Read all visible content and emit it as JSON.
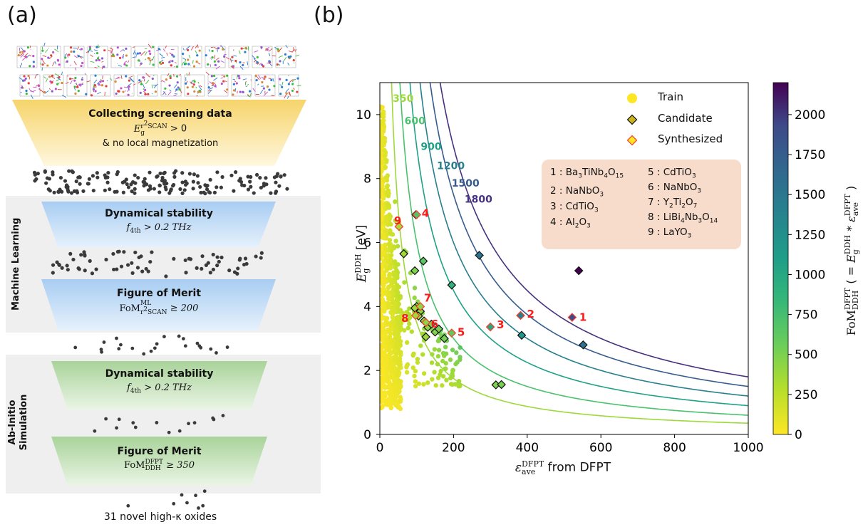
{
  "panel_a": {
    "label": "(a)",
    "stage1": {
      "title": "Collecting screening data",
      "cond_tail": "> 0",
      "cond2": "& no local magnetization"
    },
    "ml_label": "Machine Learning",
    "stage2": {
      "title": "Dynamical stability",
      "cond_tail": "> 0.2 THz"
    },
    "stage3": {
      "title": "Figure of Merit",
      "cond_tail": "≥ 200"
    },
    "ai_label_1": "Ab-Initio",
    "ai_label_2": "Simulation",
    "stage4": {
      "title": "Dynamical stability",
      "cond_tail": "> 0.2 THz"
    },
    "stage5": {
      "title": "Figure of Merit",
      "cond_tail": "≥ 350"
    },
    "result": "31 novel high-κ oxides"
  },
  "panel_b": {
    "label": "(b)",
    "legend": {
      "train": "Train",
      "candidate": "Candidate",
      "synthesized": "Synthesized"
    },
    "materials": [
      [
        "1 : Ba",
        "3",
        "TiNb",
        "4",
        "O",
        "15"
      ],
      [
        "2 : NaNbO",
        "3"
      ],
      [
        "3 : CdTiO",
        "3"
      ],
      [
        "4 : Al",
        "2",
        "O",
        "3"
      ],
      [
        "5 : CdTiO",
        "3"
      ],
      [
        "6 : NaNbO",
        "3"
      ],
      [
        "7 : Y",
        "2",
        "Ti",
        "2",
        "O",
        "7"
      ],
      [
        "8 : LiBi",
        "4",
        "Nb",
        "3",
        "O",
        "14"
      ],
      [
        "9 : LaYO",
        "3"
      ]
    ],
    "colorbar_ticks": [
      0,
      250,
      500,
      750,
      1000,
      1250,
      1500,
      1750,
      2000
    ]
  },
  "chart_data": {
    "type": "scatter",
    "xlabel_tail": "from DFPT",
    "xlim": [
      0,
      1000
    ],
    "ylim": [
      0,
      11
    ],
    "xticks": [
      0,
      200,
      400,
      600,
      800,
      1000
    ],
    "yticks": [
      0,
      2,
      4,
      6,
      8,
      10
    ],
    "iso_fom_contours": [
      350,
      600,
      900,
      1200,
      1500,
      1800
    ],
    "contour_colors": [
      "#9ed93a",
      "#4ac16d",
      "#1fa187",
      "#277f8e",
      "#365c8d",
      "#46327e"
    ],
    "colorbar_range": [
      0,
      2200
    ],
    "candidates": [
      [
        65,
        5.65
      ],
      [
        95,
        5.12
      ],
      [
        118,
        5.42
      ],
      [
        98,
        6.87
      ],
      [
        195,
        4.67
      ],
      [
        270,
        5.6
      ],
      [
        540,
        5.12
      ],
      [
        385,
        3.1
      ],
      [
        552,
        2.8
      ],
      [
        100,
        4.0
      ],
      [
        110,
        3.85
      ],
      [
        120,
        3.55
      ],
      [
        130,
        3.35
      ],
      [
        150,
        3.2
      ],
      [
        160,
        3.3
      ],
      [
        175,
        3.0
      ],
      [
        125,
        3.05
      ],
      [
        140,
        3.45
      ],
      [
        315,
        1.55
      ],
      [
        330,
        1.56
      ],
      [
        105,
        3.7
      ],
      [
        95,
        3.95
      ]
    ],
    "synthesized": [
      {
        "label": "1",
        "x": 522,
        "y": 3.66
      },
      {
        "label": "2",
        "x": 382,
        "y": 3.72
      },
      {
        "label": "3",
        "x": 300,
        "y": 3.36
      },
      {
        "label": "4",
        "x": 100,
        "y": 6.87
      },
      {
        "label": "5",
        "x": 195,
        "y": 3.17
      },
      {
        "label": "6",
        "x": 125,
        "y": 3.5
      },
      {
        "label": "7",
        "x": 110,
        "y": 4.0
      },
      {
        "label": "8",
        "x": 97,
        "y": 3.72
      },
      {
        "label": "9",
        "x": 52,
        "y": 6.5
      }
    ]
  }
}
